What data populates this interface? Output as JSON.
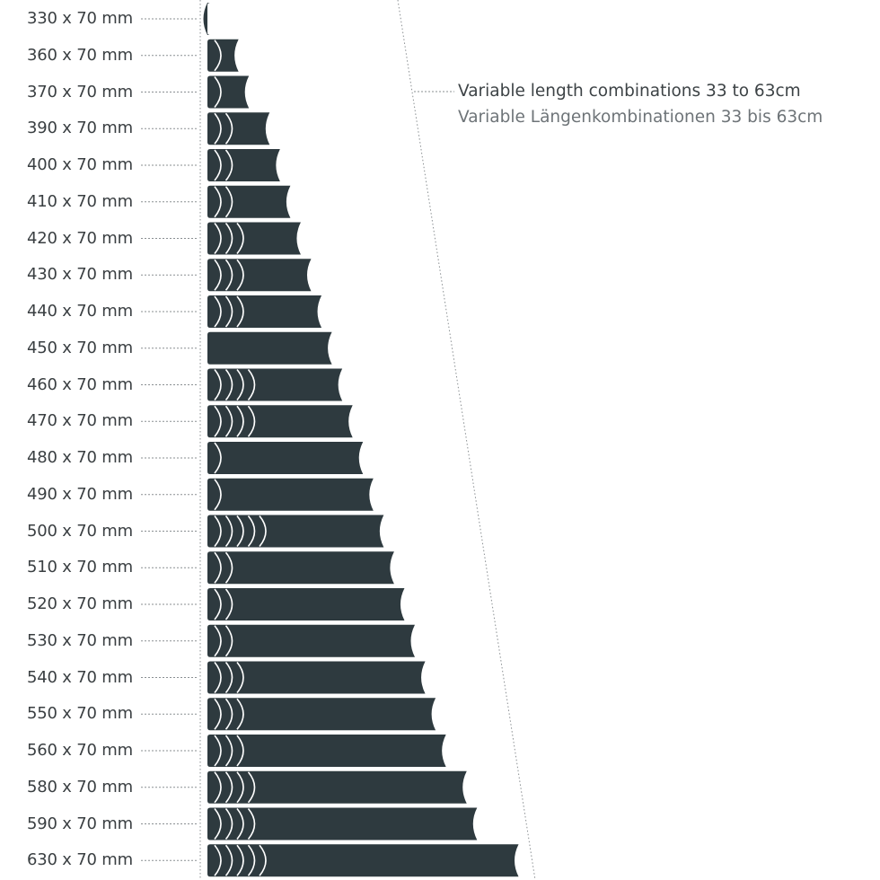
{
  "colors": {
    "bar": "#2e3a3f",
    "text": "#3a3f42",
    "subtext": "#6e7478",
    "guide": "#8a8f92"
  },
  "callout": {
    "en": "Variable length combinations 33 to 63cm",
    "de": "Variable Längenkombinationen 33 bis 63cm"
  },
  "rows": [
    {
      "label": "330 x 70 mm",
      "length_mm": 330,
      "segments": 0
    },
    {
      "label": "360 x 70 mm",
      "length_mm": 360,
      "segments": 1
    },
    {
      "label": "370 x 70 mm",
      "length_mm": 370,
      "segments": 1
    },
    {
      "label": "390 x 70 mm",
      "length_mm": 390,
      "segments": 2
    },
    {
      "label": "400 x 70 mm",
      "length_mm": 400,
      "segments": 2
    },
    {
      "label": "410 x 70 mm",
      "length_mm": 410,
      "segments": 2
    },
    {
      "label": "420 x 70 mm",
      "length_mm": 420,
      "segments": 3
    },
    {
      "label": "430 x 70 mm",
      "length_mm": 430,
      "segments": 3
    },
    {
      "label": "440 x 70 mm",
      "length_mm": 440,
      "segments": 3
    },
    {
      "label": "450 x 70 mm",
      "length_mm": 450,
      "segments": 0
    },
    {
      "label": "460 x 70 mm",
      "length_mm": 460,
      "segments": 4
    },
    {
      "label": "470 x 70 mm",
      "length_mm": 470,
      "segments": 4
    },
    {
      "label": "480 x 70 mm",
      "length_mm": 480,
      "segments": 1
    },
    {
      "label": "490 x 70 mm",
      "length_mm": 490,
      "segments": 1
    },
    {
      "label": "500 x 70 mm",
      "length_mm": 500,
      "segments": 5
    },
    {
      "label": "510 x 70 mm",
      "length_mm": 510,
      "segments": 2
    },
    {
      "label": "520 x 70 mm",
      "length_mm": 520,
      "segments": 2
    },
    {
      "label": "530 x 70 mm",
      "length_mm": 530,
      "segments": 2
    },
    {
      "label": "540 x 70 mm",
      "length_mm": 540,
      "segments": 3
    },
    {
      "label": "550 x 70 mm",
      "length_mm": 550,
      "segments": 3
    },
    {
      "label": "560 x 70 mm",
      "length_mm": 560,
      "segments": 3
    },
    {
      "label": "580 x 70 mm",
      "length_mm": 580,
      "segments": 4
    },
    {
      "label": "590 x 70 mm",
      "length_mm": 590,
      "segments": 4
    },
    {
      "label": "630 x 70 mm",
      "length_mm": 630,
      "segments": 5
    }
  ]
}
